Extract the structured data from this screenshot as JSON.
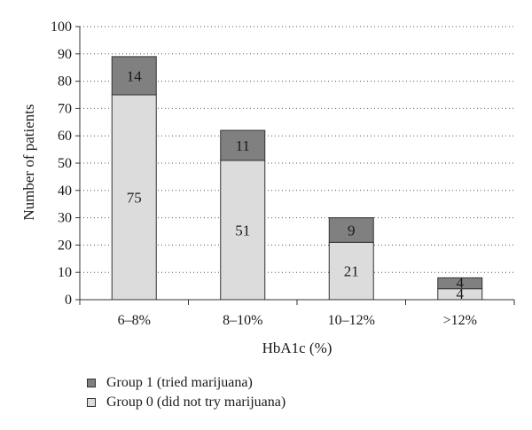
{
  "chart_data": {
    "type": "bar",
    "stacked": true,
    "categories": [
      "6–8%",
      "8–10%",
      "10–12%",
      ">12%"
    ],
    "series": [
      {
        "name": "Group 0 (did not try marijuana)",
        "values": [
          75,
          51,
          21,
          4
        ],
        "color": "#dcdcdc"
      },
      {
        "name": "Group 1 (tried marijuana)",
        "values": [
          14,
          11,
          9,
          4
        ],
        "color": "#808080"
      }
    ],
    "xlabel": "HbA1c (%)",
    "ylabel": "Number of patients",
    "ylim": [
      0,
      100
    ],
    "yticks": [
      0,
      10,
      20,
      30,
      40,
      50,
      60,
      70,
      80,
      90,
      100
    ],
    "grid": "dotted horizontal",
    "legend_position": "bottom-left",
    "legend_order": [
      "Group 1 (tried marijuana)",
      "Group 0 (did not try marijuana)"
    ]
  }
}
